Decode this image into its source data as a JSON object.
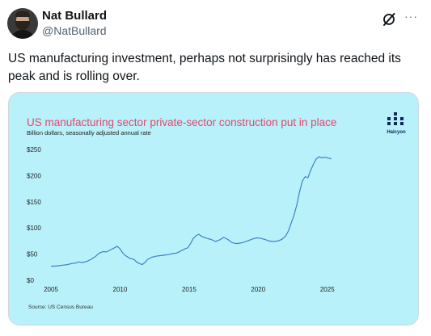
{
  "tweet": {
    "author_name": "Nat Bullard",
    "handle": "@NatBullard",
    "text": "US manufacturing investment, perhaps not surprisingly has reached its peak and is rolling over.",
    "more_label": "···"
  },
  "icons": {
    "grok": "grok-slash-circle-icon",
    "more": "more-horizontal-icon",
    "logo": "halcyon-logo"
  },
  "media": {
    "logo_label": "Halcyon",
    "source": "Source: US Census Bureau"
  },
  "colors": {
    "background": "#b8f1fa",
    "title": "#e5476a",
    "line": "#3e82c6",
    "logo": "#12275a"
  },
  "chart_data": {
    "type": "line",
    "title": "US manufacturing sector private-sector construction put in place",
    "subtitle": "Billion dollars, seasonally adjusted annual rate",
    "xlabel": "",
    "ylabel": "",
    "xlim": [
      2005,
      2025.6
    ],
    "ylim": [
      0,
      250
    ],
    "x_ticks": [
      "2005",
      "2010",
      "2015",
      "2020",
      "2025"
    ],
    "y_ticks": [
      "$0",
      "$50",
      "$100",
      "$150",
      "$200",
      "$250"
    ],
    "grid": false,
    "legend": "none",
    "series": [
      {
        "x": [
          2005.0,
          2005.3,
          2005.6,
          2005.9,
          2006.2,
          2006.5,
          2006.8,
          2007.0,
          2007.3,
          2007.6,
          2007.9,
          2008.2,
          2008.5,
          2008.8,
          2009.0,
          2009.3,
          2009.6,
          2009.8,
          2010.0,
          2010.2,
          2010.4,
          2010.7,
          2011.0,
          2011.2,
          2011.4,
          2011.6,
          2011.8,
          2012.0,
          2012.3,
          2012.6,
          2012.9,
          2013.2,
          2013.5,
          2013.8,
          2014.1,
          2014.4,
          2014.7,
          2014.9,
          2015.1,
          2015.3,
          2015.5,
          2015.7,
          2015.9,
          2016.1,
          2016.3,
          2016.6,
          2016.9,
          2017.2,
          2017.5,
          2017.8,
          2018.1,
          2018.4,
          2018.7,
          2019.0,
          2019.3,
          2019.6,
          2019.9,
          2020.2,
          2020.5,
          2020.8,
          2021.1,
          2021.4,
          2021.7,
          2022.0,
          2022.2,
          2022.4,
          2022.6,
          2022.8,
          2023.0,
          2023.2,
          2023.4,
          2023.6,
          2023.8,
          2024.0,
          2024.2,
          2024.4,
          2024.6,
          2024.8,
          2025.0,
          2025.3
        ],
        "y": [
          27,
          27,
          28,
          29,
          30,
          32,
          33,
          35,
          34,
          36,
          40,
          45,
          52,
          55,
          54,
          58,
          62,
          65,
          60,
          52,
          47,
          42,
          40,
          35,
          32,
          30,
          34,
          40,
          44,
          46,
          47,
          48,
          49,
          51,
          52,
          56,
          60,
          62,
          70,
          80,
          85,
          88,
          84,
          82,
          80,
          78,
          74,
          77,
          82,
          78,
          72,
          70,
          71,
          73,
          76,
          79,
          81,
          80,
          78,
          75,
          74,
          75,
          78,
          85,
          95,
          110,
          125,
          145,
          170,
          190,
          198,
          196,
          210,
          222,
          232,
          236,
          234,
          235,
          234,
          232
        ]
      }
    ]
  }
}
